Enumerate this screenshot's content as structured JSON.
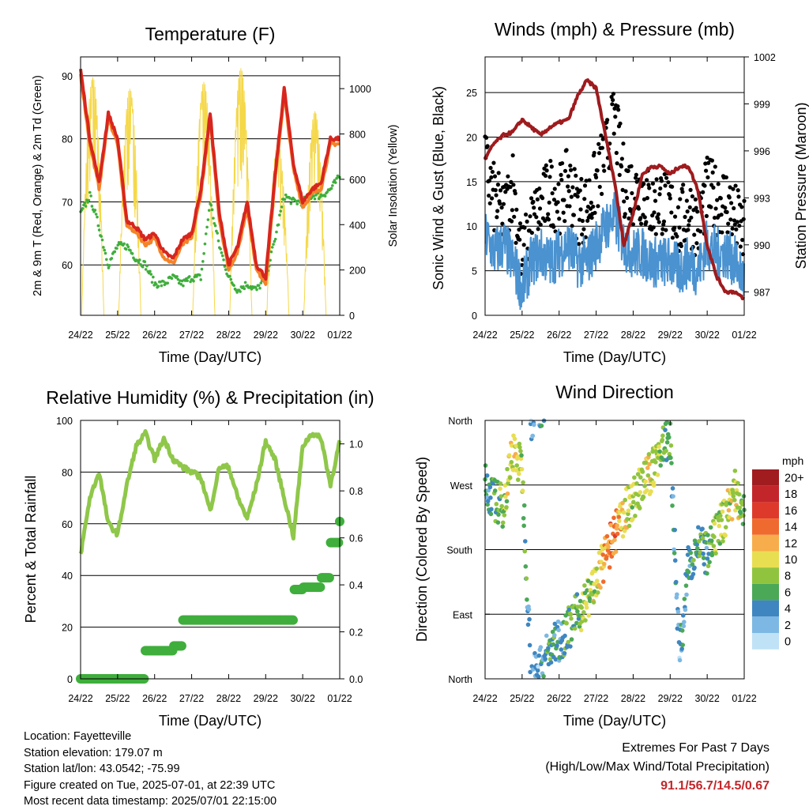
{
  "time_ticks": [
    "24/22",
    "25/22",
    "26/22",
    "27/22",
    "28/22",
    "29/22",
    "30/22",
    "01/22"
  ],
  "panels": {
    "temperature": {
      "title": "Temperature (F)",
      "xlabel": "Time (Day/UTC)",
      "ylabel_left": "2m & 9m T (Red, Orange) & 2m Td (Green)",
      "ylabel_right": "Solar Insolation (Yellow)",
      "left_ticks": [
        "60",
        "70",
        "80",
        "90"
      ],
      "right_ticks": [
        "0",
        "200",
        "400",
        "600",
        "800",
        "1000"
      ]
    },
    "winds": {
      "title": "Winds (mph) & Pressure (mb)",
      "xlabel": "Time (Day/UTC)",
      "ylabel_left": "Sonic Wind & Gust (Blue, Black)",
      "ylabel_right": "Station Pressure (Maroon)",
      "left_ticks": [
        "0",
        "5",
        "10",
        "15",
        "20",
        "25"
      ],
      "right_ticks": [
        "987",
        "990",
        "993",
        "996",
        "999",
        "1002"
      ]
    },
    "humidity": {
      "title": "Relative Humidity (%) & Precipitation (in)",
      "xlabel": "Time (Day/UTC)",
      "ylabel_left": "Percent & Total Rainfall",
      "left_ticks": [
        "0",
        "20",
        "40",
        "60",
        "80",
        "100"
      ],
      "right_ticks": [
        "0.0",
        "0.2",
        "0.4",
        "0.6",
        "0.8",
        "1.0"
      ]
    },
    "wind_direction": {
      "title": "Wind Direction",
      "xlabel": "Time (Day/UTC)",
      "ylabel_left": "Direction (Colored By Speed)",
      "left_ticks": [
        "North",
        "East",
        "South",
        "West",
        "North"
      ],
      "colorbar_title": "mph",
      "colorbar_labels": [
        "20+",
        "18",
        "16",
        "14",
        "12",
        "10",
        "8",
        "6",
        "4",
        "2",
        "0"
      ],
      "colorbar_colors": [
        "#a01c1f",
        "#c3262a",
        "#de3a2c",
        "#ef6a2e",
        "#f7ad4b",
        "#e8de52",
        "#90c43f",
        "#4aa857",
        "#3f86c0",
        "#7cb8e3",
        "#bfe2f7"
      ]
    }
  },
  "footer": {
    "location": "Location: Fayetteville",
    "elevation": "Station elevation: 179.07 m",
    "latlon": "Station lat/lon: 43.0542; -75.99",
    "created": "Figure created on Tue, 2025-07-01, at 22:39 UTC",
    "recent": "Most recent data timestamp: 2025/07/01 22:15:00"
  },
  "extremes": {
    "line1": "Extremes For Past 7 Days",
    "line2": "(High/Low/Max Wind/Total Precipitation)",
    "values": "91.1/56.7/14.5/0.67"
  },
  "colors": {
    "temp2m": "#d7261e",
    "temp9m": "#f58229",
    "dewpoint": "#3fae3c",
    "solar": "#f5d84a",
    "wind": "#4a92d0",
    "gust": "#000000",
    "pressure": "#9e1b1e",
    "rh": "#8fc74a",
    "rain": "#3fae3c"
  },
  "chart_data": [
    {
      "type": "line",
      "title": "Temperature (F)",
      "xlabel": "Time (Day/UTC)",
      "ylabel": "2m & 9m T (Red, Orange) & 2m Td (Green)",
      "y2label": "Solar Insolation (Yellow)",
      "ylim": [
        52,
        93
      ],
      "y2lim": [
        0,
        1140
      ],
      "x": [
        0,
        0.25,
        0.5,
        0.75,
        1,
        1.25,
        1.5,
        1.75,
        2,
        2.25,
        2.5,
        2.75,
        3,
        3.25,
        3.5,
        3.75,
        4,
        4.25,
        4.5,
        4.75,
        5,
        5.25,
        5.5,
        5.75,
        6,
        6.25,
        6.5,
        6.75,
        7
      ],
      "series": [
        {
          "name": "2m T",
          "values": [
            91,
            80,
            73,
            84,
            80,
            67,
            66,
            64,
            65,
            62,
            61,
            64,
            65,
            72,
            84,
            68,
            60,
            63,
            70,
            60,
            58,
            74,
            88,
            76,
            70,
            72,
            73,
            80,
            80
          ]
        },
        {
          "name": "2m Td",
          "values": [
            68,
            71,
            66,
            60,
            63,
            63,
            61,
            60,
            57,
            57,
            58,
            57,
            58,
            58,
            70,
            63,
            58,
            56,
            57,
            56,
            58,
            64,
            71,
            70,
            70,
            71,
            71,
            72,
            74
          ]
        }
      ],
      "solar_peaks": [
        {
          "x": 0.33,
          "value": 1050
        },
        {
          "x": 1.33,
          "value": 1000
        },
        {
          "x": 3.33,
          "value": 1030
        },
        {
          "x": 4.33,
          "value": 1090
        },
        {
          "x": 5.33,
          "value": 760
        },
        {
          "x": 6.33,
          "value": 900
        }
      ]
    },
    {
      "type": "line",
      "title": "Winds (mph) & Pressure (mb)",
      "xlabel": "Time (Day/UTC)",
      "ylabel": "Sonic Wind & Gust (Blue, Black)",
      "y2label": "Station Pressure (Maroon)",
      "ylim": [
        0,
        29
      ],
      "y2lim": [
        985.5,
        1002
      ],
      "x": [
        0,
        0.25,
        0.5,
        0.75,
        1,
        1.25,
        1.5,
        1.75,
        2,
        2.25,
        2.5,
        2.75,
        3,
        3.25,
        3.5,
        3.75,
        4,
        4.25,
        4.5,
        4.75,
        5,
        5.25,
        5.5,
        5.75,
        6,
        6.25,
        6.5,
        6.75,
        7
      ],
      "series": [
        {
          "name": "Wind",
          "values": [
            9,
            7,
            8,
            6,
            3,
            6,
            7,
            6,
            7,
            8,
            6,
            6,
            8,
            10,
            11,
            8,
            7,
            7,
            6,
            6,
            6,
            5,
            6,
            5,
            8,
            7,
            7,
            6,
            4
          ]
        },
        {
          "name": "Gust",
          "values": [
            17,
            13,
            11,
            15,
            6,
            10,
            12,
            14,
            13,
            15,
            12,
            12,
            15,
            18,
            22,
            15,
            14,
            14,
            12,
            13,
            12,
            10,
            12,
            10,
            14,
            13,
            13,
            11,
            9
          ]
        },
        {
          "name": "Pressure",
          "values": [
            995.5,
            996.5,
            997,
            997.2,
            998,
            997.5,
            997,
            997.5,
            997.8,
            998,
            999.5,
            1000.5,
            1000,
            997,
            994,
            990,
            992,
            994.5,
            995,
            995,
            994.5,
            995,
            995,
            993.5,
            990,
            988,
            987,
            987,
            986.5
          ]
        }
      ]
    },
    {
      "type": "line",
      "title": "Relative Humidity (%) & Precipitation (in)",
      "xlabel": "Time (Day/UTC)",
      "ylabel": "Percent & Total Rainfall",
      "ylim": [
        0,
        100
      ],
      "y2lim": [
        0,
        1.1
      ],
      "x": [
        0,
        0.25,
        0.5,
        0.75,
        1,
        1.25,
        1.5,
        1.75,
        2,
        2.25,
        2.5,
        2.75,
        3,
        3.25,
        3.5,
        3.75,
        4,
        4.25,
        4.5,
        4.75,
        5,
        5.25,
        5.5,
        5.75,
        6,
        6.25,
        6.5,
        6.75,
        7
      ],
      "series": [
        {
          "name": "RH",
          "values": [
            48,
            70,
            80,
            60,
            56,
            75,
            90,
            95,
            85,
            93,
            85,
            82,
            80,
            78,
            65,
            82,
            82,
            70,
            62,
            75,
            92,
            85,
            70,
            55,
            90,
            95,
            93,
            75,
            92
          ]
        },
        {
          "name": "Total Rainfall",
          "values": [
            0,
            0,
            0,
            0,
            0,
            0,
            0,
            0.12,
            0.12,
            0.12,
            0.14,
            0.25,
            0.25,
            0.25,
            0.25,
            0.25,
            0.25,
            0.25,
            0.25,
            0.25,
            0.25,
            0.25,
            0.25,
            0.38,
            0.39,
            0.39,
            0.43,
            0.58,
            0.67
          ]
        }
      ]
    },
    {
      "type": "scatter",
      "title": "Wind Direction",
      "xlabel": "Time (Day/UTC)",
      "ylabel": "Direction (Colored By Speed)",
      "ylim": [
        0,
        360
      ],
      "y_ticks": [
        0,
        90,
        180,
        270,
        360
      ],
      "colorbar": {
        "title": "mph",
        "range": [
          0,
          20
        ]
      },
      "x": [
        0,
        0.25,
        0.5,
        0.75,
        1,
        1.25,
        1.5,
        1.75,
        2,
        2.25,
        2.5,
        2.75,
        3,
        3.25,
        3.5,
        3.75,
        4,
        4.25,
        4.5,
        4.75,
        5,
        5.25,
        5.5,
        5.75,
        6,
        6.25,
        6.5,
        6.75,
        7
      ],
      "direction": [
        270,
        250,
        240,
        320,
        290,
        0,
        20,
        40,
        55,
        70,
        90,
        110,
        135,
        170,
        200,
        230,
        250,
        270,
        290,
        320,
        335,
        30,
        160,
        190,
        170,
        200,
        230,
        260,
        240
      ],
      "speed": [
        4,
        6,
        8,
        10,
        8,
        2,
        3,
        6,
        4,
        6,
        7,
        8,
        9,
        12,
        14,
        10,
        8,
        9,
        10,
        8,
        5,
        3,
        4,
        6,
        5,
        8,
        9,
        10,
        8
      ]
    }
  ]
}
